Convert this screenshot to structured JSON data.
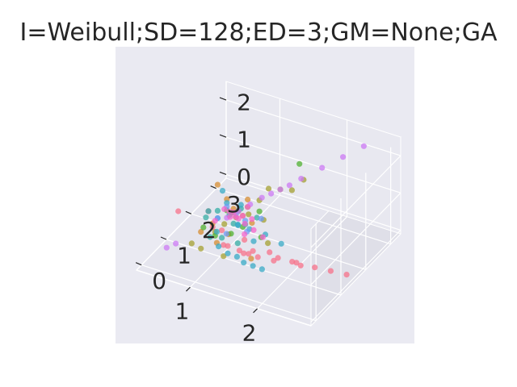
{
  "chart_data": {
    "type": "scatter",
    "title": "I=Weibull;SD=128;ED=3;GM=None;GA",
    "xlabel": "",
    "ylabel": "",
    "zlabel": "",
    "grid": true,
    "xlim": [
      0.2,
      2.8
    ],
    "ylim": [
      -0.2,
      3.4
    ],
    "zlim": [
      -0.1,
      2.5
    ],
    "x_ticks": [
      "1",
      "2"
    ],
    "y_ticks": [
      "0",
      "1",
      "2",
      "3"
    ],
    "z_ticks": [
      "0",
      "1",
      "2"
    ],
    "background_color": "#eaeaf2",
    "pane_colors": [
      "#e5e5ee",
      "#dfdfe8",
      "#e8e8f0"
    ],
    "series": [
      {
        "color": "#f77189",
        "points": [
          [
            1.6,
            0.9,
            0.3
          ],
          [
            1.8,
            1.0,
            0.25
          ],
          [
            2.0,
            1.2,
            0.2
          ],
          [
            2.3,
            1.3,
            0.15
          ],
          [
            2.5,
            1.4,
            0.1
          ],
          [
            1.4,
            0.7,
            0.5
          ],
          [
            1.5,
            0.8,
            0.4
          ],
          [
            1.7,
            1.1,
            0.35
          ],
          [
            1.2,
            0.6,
            0.6
          ],
          [
            0.6,
            0.4,
            1.3
          ],
          [
            2.7,
            1.5,
            0.05
          ],
          [
            1.9,
            0.9,
            0.45
          ],
          [
            1.3,
            0.5,
            0.7
          ],
          [
            1.5,
            0.6,
            0.55
          ],
          [
            2.1,
            1.1,
            0.3
          ],
          [
            1.1,
            0.8,
            0.8
          ],
          [
            1.0,
            0.7,
            0.9
          ],
          [
            1.6,
            0.7,
            0.6
          ],
          [
            2.2,
            1.0,
            0.35
          ],
          [
            1.4,
            0.9,
            0.65
          ]
        ]
      },
      {
        "color": "#d58c32",
        "points": [
          [
            1.0,
            0.9,
            1.9
          ],
          [
            1.1,
            1.0,
            1.5
          ],
          [
            1.2,
            1.0,
            1.3
          ],
          [
            0.9,
            0.8,
            1.2
          ],
          [
            1.3,
            1.1,
            1.1
          ],
          [
            1.0,
            0.7,
            1.0
          ],
          [
            1.4,
            1.2,
            0.9
          ],
          [
            1.5,
            0.9,
            0.2
          ],
          [
            1.1,
            0.6,
            0.6
          ],
          [
            1.2,
            0.8,
            0.75
          ],
          [
            0.9,
            0.5,
            0.85
          ],
          [
            1.3,
            1.3,
            1.4
          ]
        ]
      },
      {
        "color": "#a4a031",
        "points": [
          [
            1.5,
            1.6,
            1.6
          ],
          [
            1.6,
            1.8,
            1.5
          ],
          [
            1.7,
            2.0,
            1.4
          ],
          [
            1.4,
            1.5,
            1.3
          ],
          [
            1.3,
            1.3,
            1.2
          ],
          [
            1.2,
            1.1,
            1.0
          ],
          [
            1.1,
            0.9,
            0.9
          ],
          [
            1.0,
            0.8,
            0.7
          ],
          [
            0.8,
            0.4,
            0.55
          ],
          [
            1.8,
            2.2,
            1.6
          ],
          [
            1.6,
            1.3,
            0.4
          ],
          [
            1.2,
            0.6,
            0.3
          ],
          [
            0.9,
            0.5,
            0.4
          ],
          [
            1.5,
            1.4,
            0.9
          ],
          [
            1.35,
            1.2,
            1.1
          ]
        ]
      },
      {
        "color": "#50b131",
        "points": [
          [
            1.7,
            2.3,
            1.9
          ],
          [
            1.2,
            1.2,
            1.1
          ],
          [
            1.1,
            1.0,
            1.2
          ],
          [
            1.4,
            1.5,
            1.0
          ],
          [
            1.3,
            1.1,
            0.8
          ],
          [
            0.9,
            0.6,
            0.9
          ],
          [
            1.0,
            0.8,
            0.6
          ],
          [
            1.5,
            1.3,
            0.5
          ],
          [
            1.1,
            1.2,
            1.0
          ],
          [
            1.2,
            0.9,
            0.7
          ]
        ]
      },
      {
        "color": "#36ada4",
        "points": [
          [
            1.0,
            0.9,
            1.2
          ],
          [
            1.1,
            1.1,
            1.0
          ],
          [
            1.2,
            1.0,
            0.9
          ],
          [
            1.3,
            1.2,
            0.8
          ],
          [
            0.9,
            0.7,
            1.1
          ],
          [
            1.4,
            1.4,
            0.9
          ],
          [
            1.0,
            0.6,
            0.7
          ],
          [
            1.1,
            0.8,
            0.6
          ],
          [
            1.2,
            1.3,
            1.1
          ],
          [
            1.3,
            0.9,
            0.5
          ]
        ]
      },
      {
        "color": "#38a9c5",
        "points": [
          [
            1.0,
            1.1,
            1.6
          ],
          [
            1.1,
            1.0,
            1.4
          ],
          [
            1.2,
            1.3,
            1.2
          ],
          [
            1.3,
            0.9,
            1.0
          ],
          [
            1.4,
            1.1,
            0.8
          ],
          [
            1.5,
            1.0,
            0.6
          ],
          [
            1.6,
            0.7,
            0.2
          ],
          [
            1.7,
            0.8,
            0.1
          ],
          [
            1.5,
            0.6,
            0.3
          ],
          [
            1.4,
            0.6,
            0.4
          ],
          [
            1.3,
            0.5,
            0.5
          ],
          [
            1.2,
            0.4,
            0.7
          ],
          [
            1.1,
            0.6,
            0.9
          ],
          [
            1.0,
            0.9,
            1.0
          ],
          [
            0.9,
            0.8,
            1.2
          ],
          [
            1.6,
            1.2,
            0.7
          ],
          [
            1.8,
            1.3,
            0.5
          ],
          [
            1.25,
            1.05,
            0.85
          ]
        ]
      },
      {
        "color": "#6e9bf4",
        "points": [
          [
            1.1,
            1.0,
            1.3
          ],
          [
            1.2,
            1.1,
            1.1
          ],
          [
            1.3,
            1.2,
            0.9
          ],
          [
            1.0,
            0.9,
            1.0
          ],
          [
            1.4,
            1.0,
            0.8
          ],
          [
            1.5,
            1.3,
            1.0
          ],
          [
            1.15,
            0.85,
            0.7
          ]
        ]
      },
      {
        "color": "#cc7af4",
        "points": [
          [
            1.3,
            1.4,
            1.2
          ],
          [
            1.4,
            1.6,
            1.3
          ],
          [
            1.6,
            1.8,
            1.5
          ],
          [
            1.8,
            2.1,
            1.7
          ],
          [
            2.0,
            2.4,
            1.9
          ],
          [
            2.2,
            2.7,
            2.1
          ],
          [
            2.4,
            3.0,
            2.3
          ],
          [
            0.5,
            0.2,
            0.4
          ],
          [
            0.6,
            0.3,
            0.5
          ],
          [
            1.1,
            1.0,
            1.0
          ],
          [
            1.2,
            1.2,
            1.1
          ],
          [
            1.5,
            1.7,
            1.4
          ],
          [
            1.7,
            1.9,
            1.6
          ]
        ]
      },
      {
        "color": "#f565cc",
        "points": [
          [
            1.2,
            1.0,
            1.2
          ],
          [
            1.3,
            1.1,
            1.1
          ],
          [
            1.4,
            1.2,
            1.0
          ],
          [
            1.1,
            0.9,
            1.3
          ],
          [
            1.5,
            1.0,
            0.9
          ],
          [
            1.0,
            0.8,
            1.0
          ],
          [
            1.3,
            1.3,
            1.2
          ],
          [
            1.4,
            0.9,
            0.8
          ],
          [
            1.2,
            1.2,
            0.9
          ],
          [
            1.1,
            1.1,
            1.1
          ],
          [
            1.6,
            1.1,
            0.7
          ],
          [
            1.25,
            0.95,
            1.15
          ],
          [
            1.35,
            1.05,
            0.95
          ],
          [
            1.15,
            1.0,
            1.05
          ]
        ]
      }
    ]
  }
}
